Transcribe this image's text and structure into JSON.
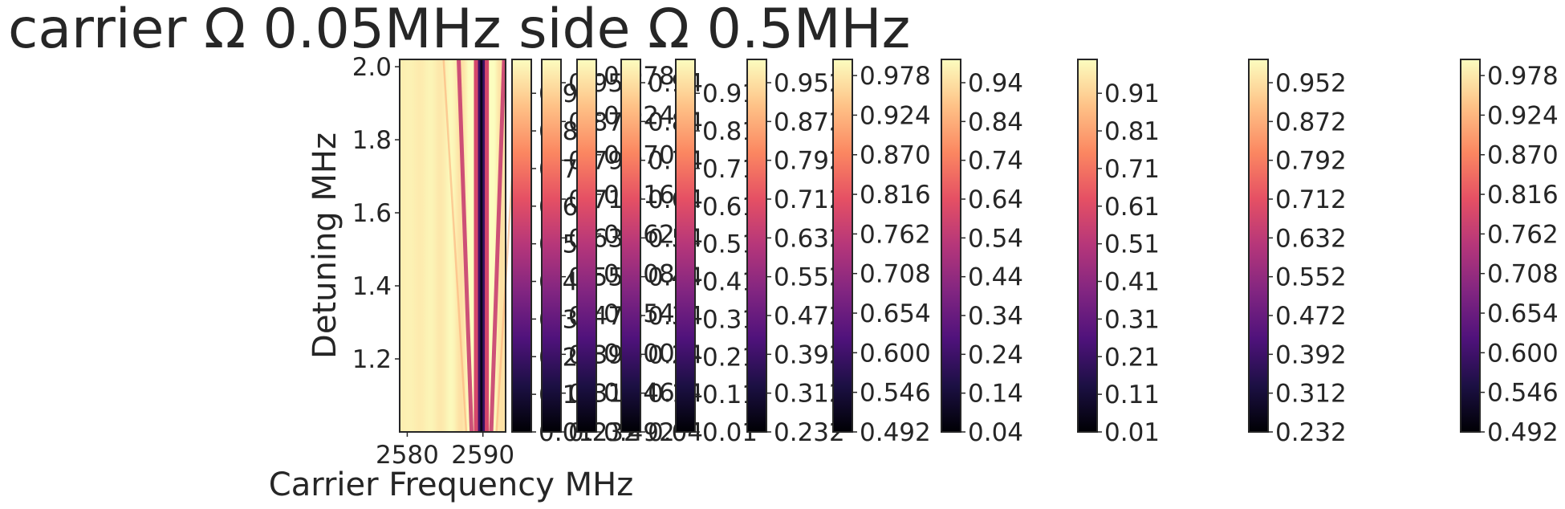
{
  "chart_data": {
    "type": "heatmap",
    "title": "carrier Ω 0.05MHz side Ω 0.5MHz",
    "xlabel": "Carrier Frequency MHz",
    "ylabel": "Detuning MHz",
    "x_ticks": [
      2580,
      2590
    ],
    "y_ticks": [
      1.2,
      1.4,
      1.6,
      1.8,
      2.0
    ],
    "xlim": [
      2579,
      2593
    ],
    "ylim": [
      1.0,
      2.02
    ],
    "colormap": "magma",
    "colormap_stops": [
      "#000004",
      "#1c1044",
      "#4f127b",
      "#812581",
      "#b5367a",
      "#e55064",
      "#fb8761",
      "#fec287",
      "#fcfdbf"
    ],
    "resonance": {
      "center_x": 2589.8,
      "dark_core_halfwidth": 0.45,
      "side_line_offset_at_ymax": 3.0,
      "side_line_offset_at_ymin": 1.3,
      "outer_fringe_offset_at_ymax": 5.0,
      "outer_fringe_offset_at_ymin": 2.0
    },
    "colorbars": [
      {
        "name": "colorbar-1",
        "min": 0.01,
        "max": 1.0,
        "ticks": [
          0.01,
          0.11,
          0.21,
          0.31,
          0.41,
          0.51,
          0.61,
          0.71,
          0.81,
          0.91
        ],
        "tick_labels": [
          "0.01",
          "0.11",
          "0.21",
          "0.31",
          "0.41",
          "0.51",
          "0.61",
          "0.71",
          "0.81",
          "0.91"
        ]
      },
      {
        "name": "colorbar-2",
        "min": 0.232,
        "max": 1.0,
        "ticks": [
          0.232,
          0.312,
          0.392,
          0.472,
          0.552,
          0.632,
          0.712,
          0.792,
          0.872,
          0.952
        ],
        "tick_labels": [
          "0.232",
          "0.312",
          "0.392",
          "0.472",
          "0.552",
          "0.632",
          "0.712",
          "0.792",
          "0.872",
          "0.952"
        ]
      },
      {
        "name": "colorbar-3",
        "min": 0.492,
        "max": 1.0,
        "ticks": [
          0.492,
          0.546,
          0.6,
          0.654,
          0.708,
          0.762,
          0.816,
          0.87,
          0.924,
          0.978
        ],
        "tick_labels": [
          "0.492",
          "0.546",
          "0.600",
          "0.654",
          "0.708",
          "0.762",
          "0.816",
          "0.870",
          "0.924",
          "0.978"
        ]
      },
      {
        "name": "colorbar-4",
        "min": 0.04,
        "max": 1.0,
        "ticks": [
          0.04,
          0.14,
          0.24,
          0.34,
          0.44,
          0.54,
          0.64,
          0.74,
          0.84,
          0.94
        ],
        "tick_labels": [
          "0.04",
          "0.14",
          "0.24",
          "0.34",
          "0.44",
          "0.54",
          "0.64",
          "0.74",
          "0.84",
          "0.94"
        ]
      },
      {
        "name": "colorbar-5",
        "min": 0.01,
        "max": 1.0,
        "ticks": [
          0.01,
          0.11,
          0.21,
          0.31,
          0.41,
          0.51,
          0.61,
          0.71,
          0.81,
          0.91
        ],
        "tick_labels": [
          "0.01",
          "0.11",
          "0.21",
          "0.31",
          "0.41",
          "0.51",
          "0.61",
          "0.71",
          "0.81",
          "0.91"
        ]
      },
      {
        "name": "colorbar-6",
        "min": 0.232,
        "max": 1.0,
        "ticks": [
          0.232,
          0.312,
          0.392,
          0.472,
          0.552,
          0.632,
          0.712,
          0.792,
          0.872,
          0.952
        ],
        "tick_labels": [
          "0.232",
          "0.312",
          "0.392",
          "0.472",
          "0.552",
          "0.632",
          "0.712",
          "0.792",
          "0.872",
          "0.952"
        ]
      },
      {
        "name": "colorbar-7",
        "min": 0.492,
        "max": 1.0,
        "ticks": [
          0.492,
          0.546,
          0.6,
          0.654,
          0.708,
          0.762,
          0.816,
          0.87,
          0.924,
          0.978
        ],
        "tick_labels": [
          "0.492",
          "0.546",
          "0.600",
          "0.654",
          "0.708",
          "0.762",
          "0.816",
          "0.870",
          "0.924",
          "0.978"
        ]
      },
      {
        "name": "colorbar-8",
        "min": 0.04,
        "max": 1.0,
        "ticks": [
          0.04,
          0.14,
          0.24,
          0.34,
          0.44,
          0.54,
          0.64,
          0.74,
          0.84,
          0.94
        ],
        "tick_labels": [
          "0.04",
          "0.14",
          "0.24",
          "0.34",
          "0.44",
          "0.54",
          "0.64",
          "0.74",
          "0.84",
          "0.94"
        ]
      },
      {
        "name": "colorbar-9",
        "min": 0.01,
        "max": 1.0,
        "ticks": [
          0.01,
          0.11,
          0.21,
          0.31,
          0.41,
          0.51,
          0.61,
          0.71,
          0.81,
          0.91
        ],
        "tick_labels": [
          "0.01",
          "0.11",
          "0.21",
          "0.31",
          "0.41",
          "0.51",
          "0.61",
          "0.71",
          "0.81",
          "0.91"
        ]
      },
      {
        "name": "colorbar-10",
        "min": 0.232,
        "max": 1.0,
        "ticks": [
          0.232,
          0.312,
          0.392,
          0.472,
          0.552,
          0.632,
          0.712,
          0.792,
          0.872,
          0.952
        ],
        "tick_labels": [
          "0.232",
          "0.312",
          "0.392",
          "0.472",
          "0.552",
          "0.632",
          "0.712",
          "0.792",
          "0.872",
          "0.952"
        ]
      },
      {
        "name": "colorbar-11",
        "min": 0.492,
        "max": 1.0,
        "ticks": [
          0.492,
          0.546,
          0.6,
          0.654,
          0.708,
          0.762,
          0.816,
          0.87,
          0.924,
          0.978
        ],
        "tick_labels": [
          "0.492",
          "0.546",
          "0.600",
          "0.654",
          "0.708",
          "0.762",
          "0.816",
          "0.870",
          "0.924",
          "0.978"
        ]
      }
    ]
  }
}
